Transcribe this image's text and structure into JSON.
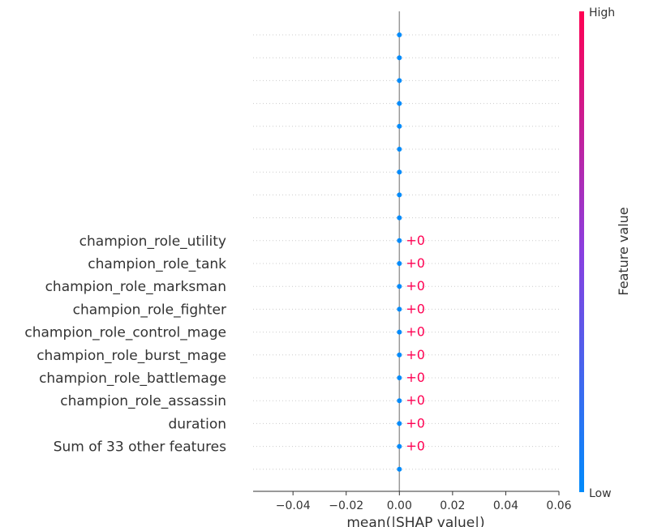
{
  "chart_data": {
    "type": "scatter",
    "xlabel": "mean(|SHAP value|)",
    "xlim": [
      -0.055,
      0.06
    ],
    "xticks": [
      -0.04,
      -0.02,
      0.0,
      0.02,
      0.04,
      0.06
    ],
    "xtick_labels": [
      "−0.04",
      "−0.02",
      "0.00",
      "0.02",
      "0.04",
      "0.06"
    ],
    "grid": true,
    "features": [
      {
        "label": "champion_role_utility",
        "value": 0,
        "annotation": "+0"
      },
      {
        "label": "champion_role_tank",
        "value": 0,
        "annotation": "+0"
      },
      {
        "label": "champion_role_marksman",
        "value": 0,
        "annotation": "+0"
      },
      {
        "label": "champion_role_fighter",
        "value": 0,
        "annotation": "+0"
      },
      {
        "label": "champion_role_control_mage",
        "value": 0,
        "annotation": "+0"
      },
      {
        "label": "champion_role_burst_mage",
        "value": 0,
        "annotation": "+0"
      },
      {
        "label": "champion_role_battlemage",
        "value": 0,
        "annotation": "+0"
      },
      {
        "label": "champion_role_assassin",
        "value": 0,
        "annotation": "+0"
      },
      {
        "label": "duration",
        "value": 0,
        "annotation": "+0"
      },
      {
        "label": "Sum of 33 other features",
        "value": 0,
        "annotation": "+0"
      }
    ],
    "unlabeled_rows_above": 9,
    "unlabeled_rows_below": 1,
    "colorbar": {
      "label": "Feature value",
      "high_label": "High",
      "low_label": "Low",
      "low_color": "#008bfb",
      "high_color": "#ff0052"
    },
    "point_color": "#008bfb",
    "annotation_color": "#ff0052"
  }
}
